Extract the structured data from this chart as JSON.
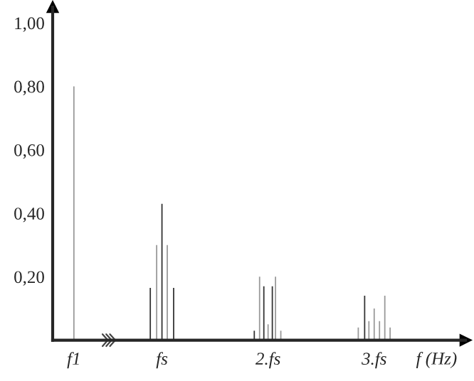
{
  "chart_data": {
    "type": "bar",
    "xlabel": "f (Hz)",
    "x": [
      0.17,
      0.89,
      0.95,
      1,
      1.05,
      1.11,
      1.87,
      1.92,
      1.96,
      2,
      2.04,
      2.07,
      2.12,
      2.85,
      2.91,
      2.95,
      3,
      3.05,
      3.1,
      3.15
    ],
    "values": [
      0.8,
      0.165,
      0.3,
      0.43,
      0.3,
      0.165,
      0.03,
      0.2,
      0.17,
      0.05,
      0.17,
      0.2,
      0.03,
      0.04,
      0.14,
      0.06,
      0.1,
      0.06,
      0.14,
      0.04
    ],
    "colors": [
      "#999999",
      "#333333",
      "#999999",
      "#333333",
      "#999999",
      "#333333",
      "#333333",
      "#999999",
      "#333333",
      "#999999",
      "#333333",
      "#999999",
      "#999999",
      "#999999",
      "#333333",
      "#999999",
      "#999999",
      "#999999",
      "#999999",
      "#999999"
    ],
    "xlim": [
      -0.03,
      3.86
    ],
    "ylim": [
      0,
      1.05
    ],
    "xticks": [
      {
        "value": 0.17,
        "label": "f1"
      },
      {
        "value": 1,
        "label": "fs"
      },
      {
        "value": 2,
        "label": "2.fs"
      },
      {
        "value": 3,
        "label": "3.fs"
      }
    ],
    "yticks": [
      {
        "value": 0.2,
        "label": "0,20"
      },
      {
        "value": 0.4,
        "label": "0,40"
      },
      {
        "value": 0.6,
        "label": "0,60"
      },
      {
        "value": 0.8,
        "label": "0,80"
      },
      {
        "value": 1.0,
        "label": "1,00"
      }
    ],
    "grid": false,
    "legend": false
  }
}
